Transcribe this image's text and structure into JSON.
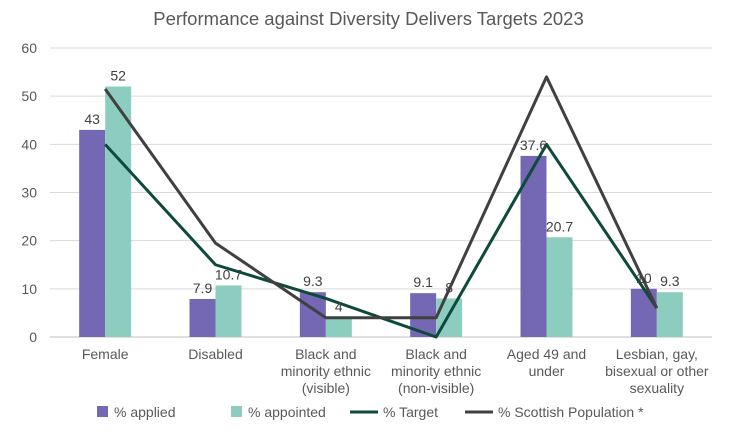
{
  "chart_data": {
    "type": "bar",
    "title": "Performance against Diversity Delivers Targets 2023",
    "xlabel": "",
    "ylabel": "",
    "ylim": [
      0,
      60
    ],
    "yticks": [
      0,
      10,
      20,
      30,
      40,
      50,
      60
    ],
    "grid": true,
    "legend_position": "bottom",
    "categories": [
      [
        "Female"
      ],
      [
        "Disabled"
      ],
      [
        "Black and",
        "minority ethnic",
        "(visible)"
      ],
      [
        "Black and",
        "minority ethnic",
        "(non-visible)"
      ],
      [
        "Aged 49 and",
        "under"
      ],
      [
        "Lesbian, gay,",
        "bisexual or other",
        "sexuality"
      ]
    ],
    "bar_series": [
      {
        "name": "% applied",
        "color": "#7467b4",
        "values": [
          43,
          7.9,
          9.3,
          9.1,
          37.6,
          10
        ],
        "labels": [
          "43",
          "7.9",
          "9.3",
          "9.1",
          "37.6",
          "10"
        ]
      },
      {
        "name": "% appointed",
        "color": "#8dcdbf",
        "values": [
          52,
          10.7,
          4,
          8,
          20.7,
          9.3
        ],
        "labels": [
          "52",
          "10.7",
          "4",
          "8",
          "20.7",
          "9.3"
        ]
      }
    ],
    "line_series": [
      {
        "name": "% Target",
        "color": "#0e4a3c",
        "values": [
          40,
          15,
          8,
          0,
          40,
          6
        ]
      },
      {
        "name": "% Scottish Population *",
        "color": "#404040",
        "values": [
          51.5,
          19.5,
          4,
          4,
          54,
          6
        ]
      }
    ]
  }
}
